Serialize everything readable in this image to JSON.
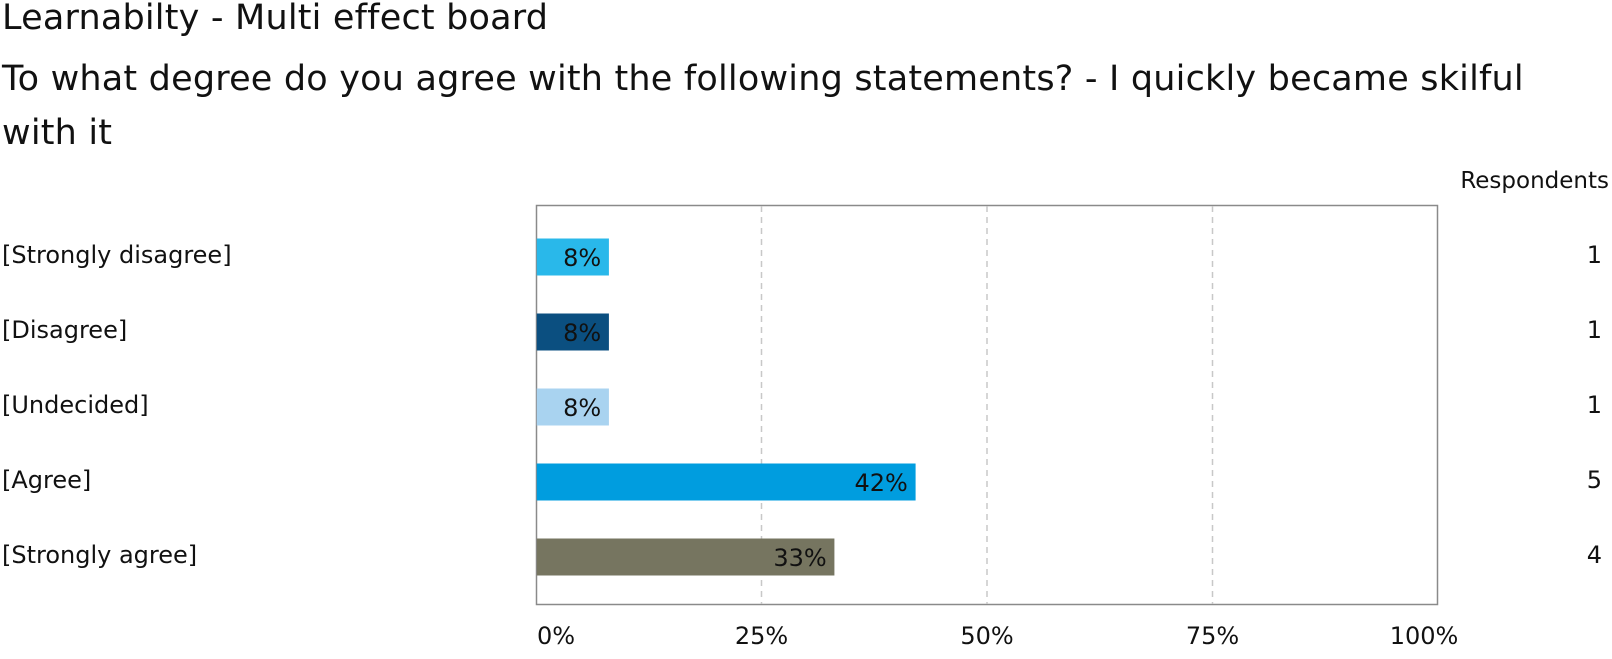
{
  "chart_data": {
    "type": "bar",
    "orientation": "horizontal",
    "title": "Learnabilty - Multi effect board",
    "subtitle": "To what degree do you agree with the following statements? - I quickly became skilful with it",
    "respondents_header": "Respondents",
    "categories": [
      "[Strongly disagree]",
      "[Disagree]",
      "[Undecided]",
      "[Agree]",
      "[Strongly agree]"
    ],
    "values": [
      8,
      8,
      8,
      42,
      33
    ],
    "value_labels": [
      "8%",
      "8%",
      "8%",
      "42%",
      "33%"
    ],
    "respondents": [
      "1",
      "1",
      "1",
      "5",
      "4"
    ],
    "bar_colors": [
      "#29b8ea",
      "#0b4f80",
      "#a9d3f0",
      "#009ddf",
      "#767560"
    ],
    "xlim": [
      0,
      100
    ],
    "x_ticks": [
      "0%",
      "25%",
      "50%",
      "75%",
      "100%"
    ],
    "grid": true
  }
}
